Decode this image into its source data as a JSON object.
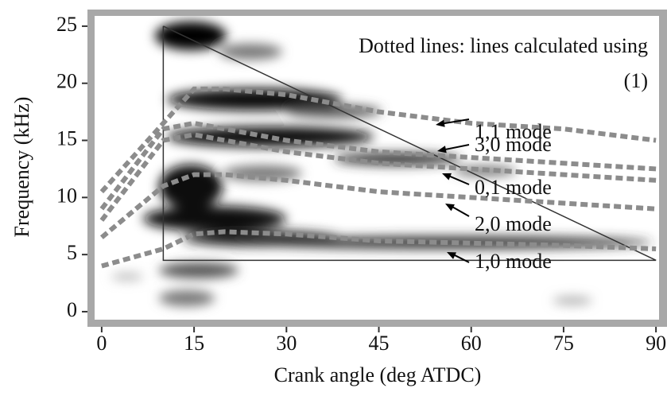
{
  "chart_data": {
    "type": "line",
    "xlabel": "Crank angle (deg ATDC)",
    "ylabel": "Frequency (kHz)",
    "annotation": [
      "Dotted lines: lines calculated using",
      "(1)"
    ],
    "x": [
      0,
      10,
      15,
      20,
      30,
      45,
      60,
      75,
      90
    ],
    "series": [
      {
        "name": "1,1 mode",
        "color": "#8c8c8c",
        "values": [
          10.5,
          16.5,
          19.5,
          19.5,
          19,
          17.5,
          16.5,
          16,
          15
        ]
      },
      {
        "name": "3,0 mode",
        "color": "#8c8c8c",
        "values": [
          9,
          16,
          16.5,
          16,
          15,
          14,
          13.5,
          13,
          12.5
        ]
      },
      {
        "name": "0,1 mode",
        "color": "#8c8c8c",
        "values": [
          8,
          15,
          15.5,
          15,
          14,
          13,
          12.5,
          12,
          11.5
        ]
      },
      {
        "name": "2,0 mode",
        "color": "#8c8c8c",
        "values": [
          6.5,
          11,
          12,
          12,
          11.5,
          10.5,
          10,
          9.5,
          9
        ]
      },
      {
        "name": "1,0 mode",
        "color": "#8c8c8c",
        "values": [
          4,
          5.5,
          6.8,
          7,
          6.8,
          6.2,
          6,
          5.8,
          5.5
        ]
      }
    ],
    "boundary": {
      "color": "#333333",
      "x": [
        10,
        10,
        90,
        10
      ],
      "y": [
        25,
        4.5,
        4.5,
        25
      ]
    },
    "xlim": [
      -1.15,
      90.5
    ],
    "ylim": [
      -0.7,
      25.9
    ],
    "xticks": [
      0,
      15,
      30,
      45,
      60,
      75,
      90
    ],
    "yticks": [
      0,
      5,
      10,
      15,
      20,
      25
    ],
    "line_style": "dotted"
  }
}
